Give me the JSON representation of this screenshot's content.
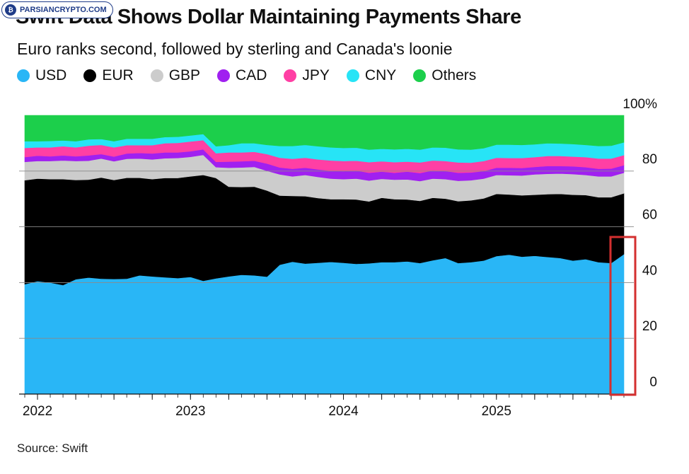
{
  "watermark": {
    "logo_glyph": "₿",
    "text": "PARSIANCRYPTO.COM"
  },
  "title": "Swift Data Shows Dollar Maintaining Payments Share",
  "subtitle": "Euro ranks second, followed by sterling and Canada's loonie",
  "source": "Source: Swift",
  "highlight": {
    "color": "#d32f2f",
    "covers_month": "2025-11"
  },
  "chart_data": {
    "type": "area",
    "stacked": true,
    "x_unit": "month",
    "x": [
      "2021-12",
      "2022-01",
      "2022-02",
      "2022-03",
      "2022-04",
      "2022-05",
      "2022-06",
      "2022-07",
      "2022-08",
      "2022-09",
      "2022-10",
      "2022-11",
      "2022-12",
      "2023-01",
      "2023-02",
      "2023-03",
      "2023-04",
      "2023-05",
      "2023-06",
      "2023-07",
      "2023-08",
      "2023-09",
      "2023-10",
      "2023-11",
      "2023-12",
      "2024-01",
      "2024-02",
      "2024-03",
      "2024-04",
      "2024-05",
      "2024-06",
      "2024-07",
      "2024-08",
      "2024-09",
      "2024-10",
      "2024-11",
      "2024-12",
      "2025-01",
      "2025-02",
      "2025-03",
      "2025-04",
      "2025-05",
      "2025-06",
      "2025-07",
      "2025-08",
      "2025-09",
      "2025-10",
      "2025-11"
    ],
    "ylim": [
      0,
      100
    ],
    "yticks": [
      0,
      20,
      40,
      60,
      80,
      "100%"
    ],
    "xticks": [
      {
        "label": "2022",
        "x": "2022-01"
      },
      {
        "label": "2023",
        "x": "2023-01"
      },
      {
        "label": "2024",
        "x": "2024-01"
      },
      {
        "label": "2025",
        "x": "2025-01"
      }
    ],
    "legend_position": "top",
    "series": [
      {
        "name": "USD",
        "color": "#29b6f6",
        "values": [
          39.4,
          40.5,
          40.0,
          39.1,
          41.2,
          41.8,
          41.4,
          41.3,
          41.4,
          42.6,
          42.2,
          41.9,
          41.6,
          42.0,
          40.6,
          41.5,
          42.2,
          42.8,
          42.6,
          42.1,
          46.4,
          47.5,
          46.8,
          47.1,
          47.4,
          47.1,
          46.7,
          46.9,
          47.3,
          47.3,
          47.6,
          47.0,
          48.0,
          48.8,
          47.0,
          47.3,
          47.9,
          49.5,
          50.0,
          49.3,
          49.6,
          49.2,
          48.8,
          47.9,
          48.4,
          47.3,
          47.0,
          50.2
        ]
      },
      {
        "name": "EUR",
        "color": "#000000",
        "values": [
          37.3,
          36.8,
          37.1,
          38.0,
          35.6,
          35.1,
          36.3,
          35.5,
          36.2,
          35.0,
          34.9,
          35.6,
          35.9,
          36.1,
          38.0,
          36.0,
          32.2,
          31.5,
          31.8,
          30.9,
          24.8,
          23.6,
          24.2,
          23.2,
          22.5,
          22.8,
          23.1,
          22.2,
          23.1,
          22.6,
          22.2,
          22.3,
          22.4,
          21.3,
          22.2,
          22.2,
          22.3,
          22.3,
          21.6,
          22.0,
          21.9,
          22.5,
          23.0,
          23.6,
          23.0,
          23.3,
          23.6,
          21.8
        ]
      },
      {
        "name": "GBP",
        "color": "#cccccc",
        "values": [
          6.6,
          6.3,
          6.5,
          6.7,
          6.8,
          6.8,
          6.8,
          6.7,
          6.8,
          6.9,
          7.1,
          7.1,
          7.2,
          7.0,
          7.2,
          3.9,
          6.8,
          7.0,
          7.1,
          7.1,
          7.6,
          7.0,
          7.6,
          7.6,
          7.4,
          7.2,
          7.5,
          7.5,
          6.8,
          7.0,
          7.2,
          7.1,
          6.9,
          7.0,
          7.3,
          7.2,
          7.1,
          6.8,
          6.9,
          7.1,
          7.3,
          7.3,
          7.3,
          7.4,
          7.2,
          7.5,
          7.5,
          7.4
        ]
      },
      {
        "name": "CAD",
        "color": "#a020f0",
        "values": [
          1.7,
          1.9,
          1.7,
          1.8,
          1.7,
          1.9,
          1.6,
          1.7,
          1.9,
          2.0,
          2.1,
          2.1,
          2.0,
          2.0,
          2.0,
          1.9,
          2.2,
          2.2,
          2.2,
          2.6,
          2.5,
          2.7,
          2.6,
          2.7,
          2.8,
          2.9,
          2.9,
          2.8,
          2.6,
          2.5,
          2.8,
          2.9,
          2.9,
          2.9,
          2.9,
          2.8,
          2.7,
          2.6,
          2.7,
          2.7,
          2.7,
          2.8,
          2.7,
          2.8,
          2.8,
          2.7,
          2.8,
          2.7
        ]
      },
      {
        "name": "JPY",
        "color": "#ff3fa4",
        "values": [
          3.3,
          3.0,
          3.2,
          3.3,
          3.2,
          3.5,
          3.3,
          3.3,
          3.0,
          2.8,
          3.0,
          3.3,
          3.4,
          3.5,
          3.3,
          3.1,
          3.3,
          3.2,
          3.2,
          3.4,
          3.5,
          3.6,
          3.6,
          3.6,
          3.7,
          3.6,
          3.5,
          3.8,
          3.7,
          3.8,
          3.6,
          3.8,
          3.6,
          3.6,
          3.7,
          3.5,
          3.6,
          3.6,
          3.5,
          3.6,
          3.5,
          3.6,
          3.6,
          3.5,
          3.6,
          3.7,
          3.6,
          3.6
        ]
      },
      {
        "name": "CNY",
        "color": "#27e4f6",
        "values": [
          2.4,
          2.2,
          2.3,
          2.1,
          2.2,
          2.3,
          2.1,
          2.2,
          2.3,
          2.3,
          2.3,
          2.2,
          2.2,
          2.2,
          2.2,
          2.5,
          2.6,
          3.3,
          3.1,
          3.3,
          4.2,
          4.6,
          4.6,
          4.7,
          4.7,
          4.7,
          4.7,
          4.5,
          4.5,
          4.6,
          4.6,
          4.6,
          4.7,
          4.8,
          4.7,
          4.7,
          4.6,
          4.7,
          4.8,
          4.7,
          4.6,
          4.6,
          4.5,
          4.5,
          4.4,
          4.5,
          4.6,
          4.6
        ]
      },
      {
        "name": "Others",
        "color": "#1ccf4b",
        "values": [
          9.3,
          9.3,
          9.2,
          9.0,
          9.3,
          8.6,
          8.5,
          9.3,
          8.4,
          8.4,
          8.4,
          7.8,
          7.7,
          7.2,
          6.7,
          11.1,
          10.7,
          10.0,
          10.0,
          10.6,
          11.0,
          11.0,
          10.6,
          11.1,
          11.5,
          11.7,
          11.6,
          12.3,
          12.0,
          12.2,
          12.0,
          12.3,
          11.5,
          11.6,
          12.2,
          12.3,
          11.8,
          10.5,
          10.5,
          10.6,
          10.4,
          10.0,
          10.1,
          10.3,
          10.6,
          11.0,
          10.9,
          9.7
        ]
      }
    ]
  }
}
